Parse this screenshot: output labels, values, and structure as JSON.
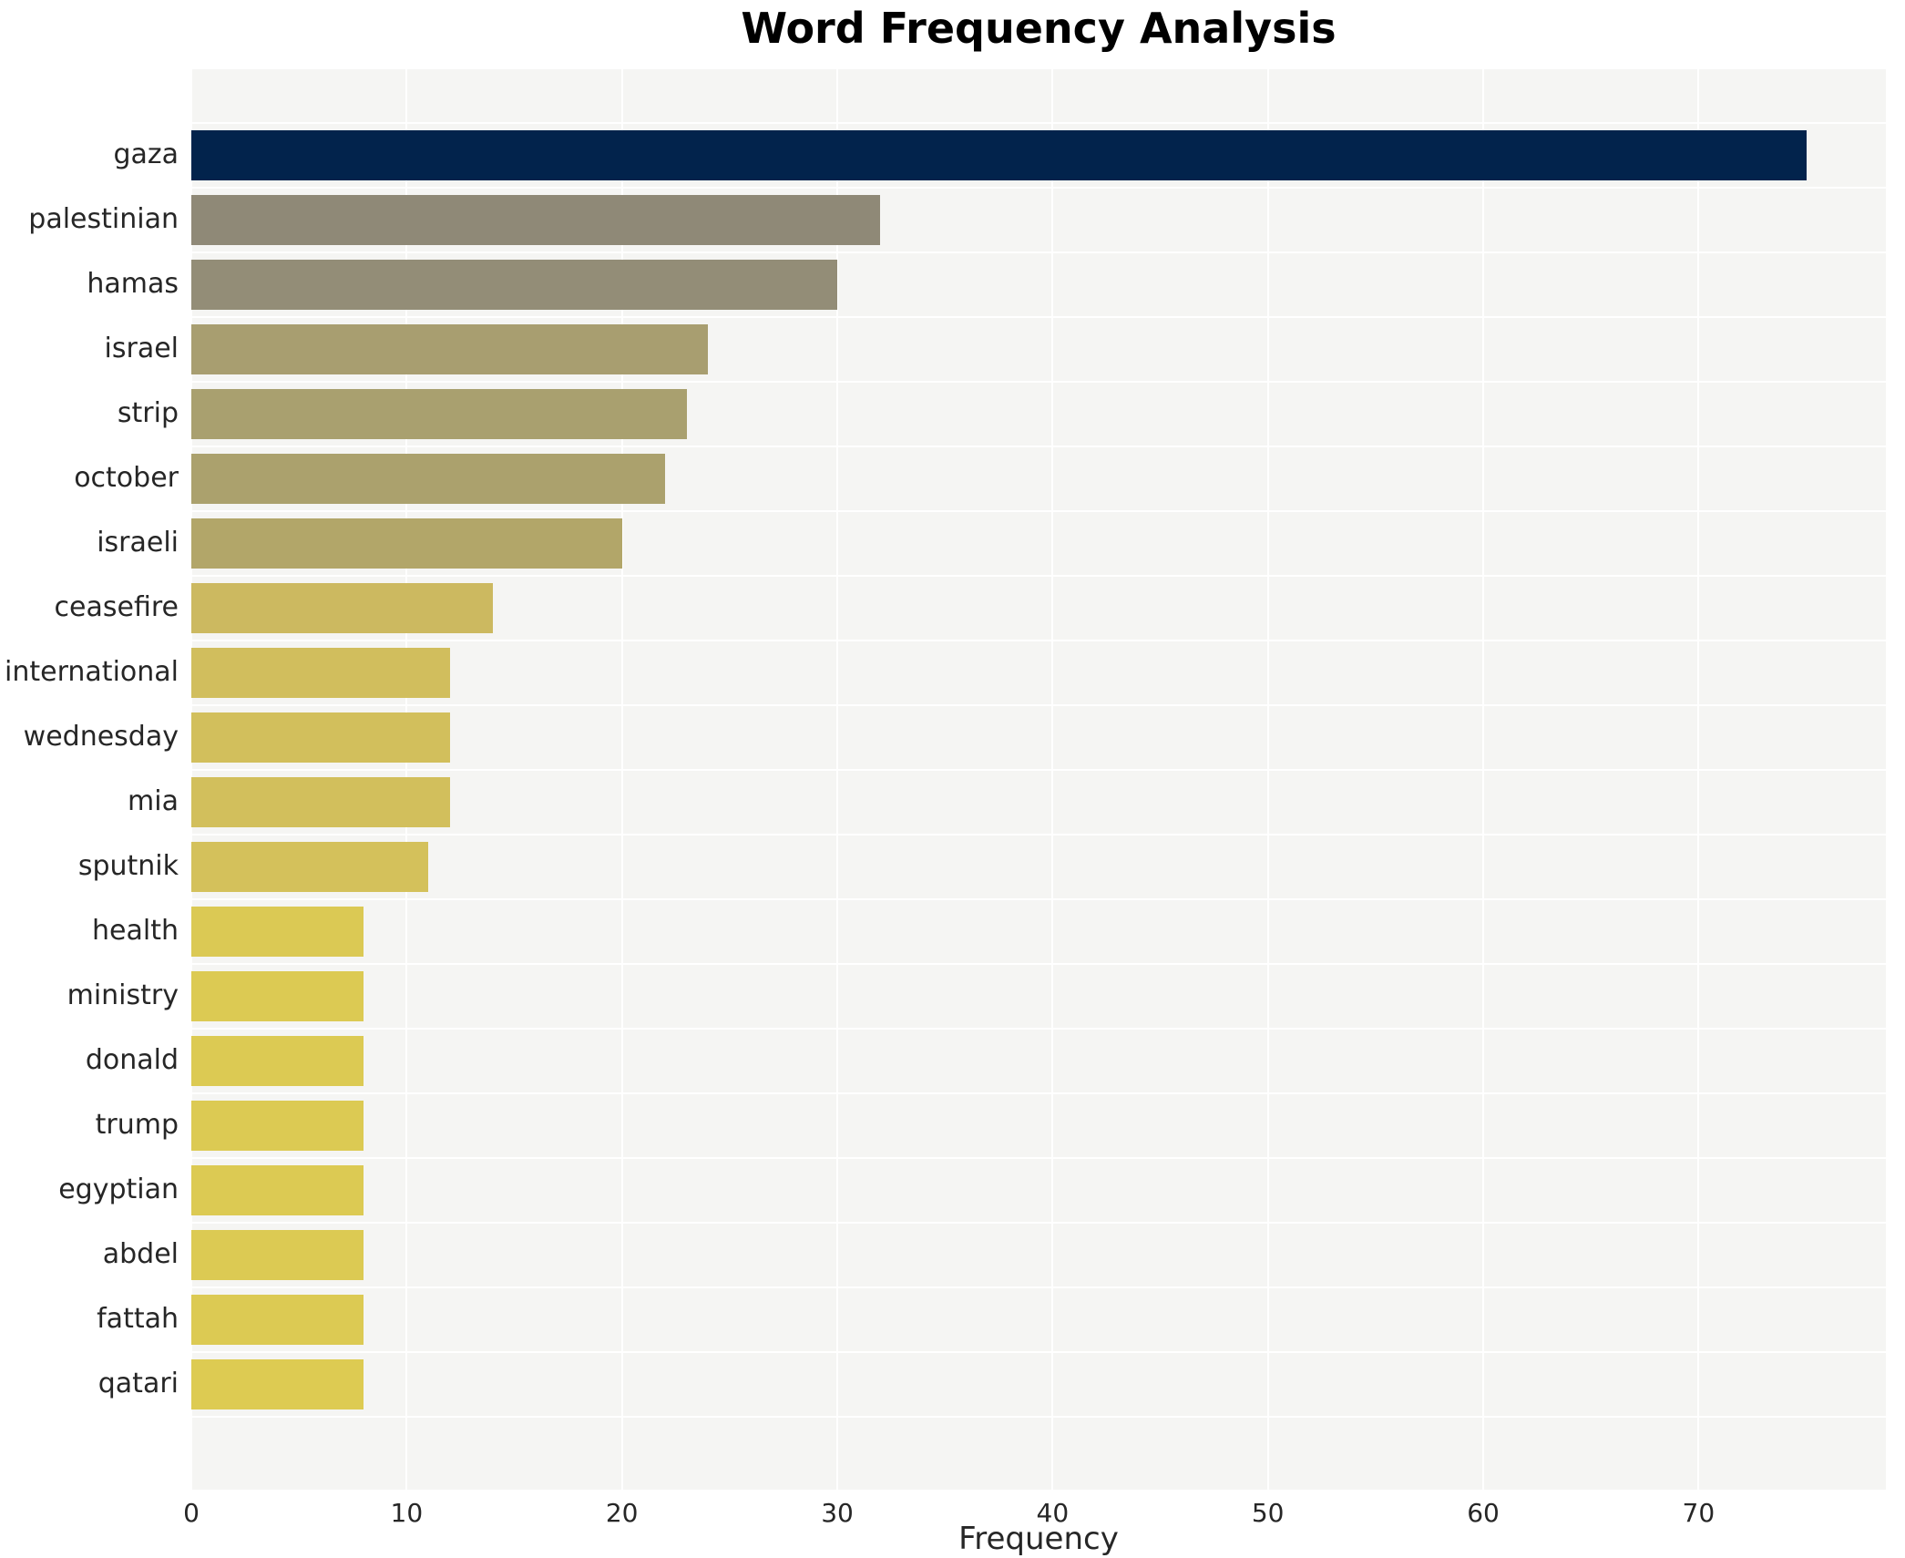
{
  "title": "Word Frequency Analysis",
  "chart_data": {
    "type": "bar",
    "orientation": "horizontal",
    "title": "Word Frequency Analysis",
    "xlabel": "Frequency",
    "ylabel": "",
    "categories": [
      "gaza",
      "palestinian",
      "hamas",
      "israel",
      "strip",
      "october",
      "israeli",
      "ceasefire",
      "international",
      "wednesday",
      "mia",
      "sputnik",
      "health",
      "ministry",
      "donald",
      "trump",
      "egyptian",
      "abdel",
      "fattah",
      "qatari"
    ],
    "values": [
      75,
      32,
      30,
      24,
      23,
      22,
      20,
      14,
      12,
      12,
      12,
      11,
      8,
      8,
      8,
      8,
      8,
      8,
      8,
      8
    ],
    "bar_colors": [
      "#02234c",
      "#8f8977",
      "#938d77",
      "#a89e70",
      "#a9a06f",
      "#aba16d",
      "#b2a669",
      "#ccb960",
      "#d1be5d",
      "#d2bf5c",
      "#d2bf5c",
      "#d4c15b",
      "#dbc954",
      "#dcca53",
      "#dcca53",
      "#dcca53",
      "#dcca53",
      "#dcca53",
      "#dcca53",
      "#ddcb52"
    ],
    "xticks": [
      0,
      10,
      20,
      30,
      40,
      50,
      60,
      70
    ],
    "xlim": [
      0,
      78.7
    ],
    "grid": true,
    "legend": false,
    "plot_bg_color": "#f5f5f3",
    "grid_color": "#ffffff",
    "text_color": "#262626",
    "title_color": "#000000"
  }
}
